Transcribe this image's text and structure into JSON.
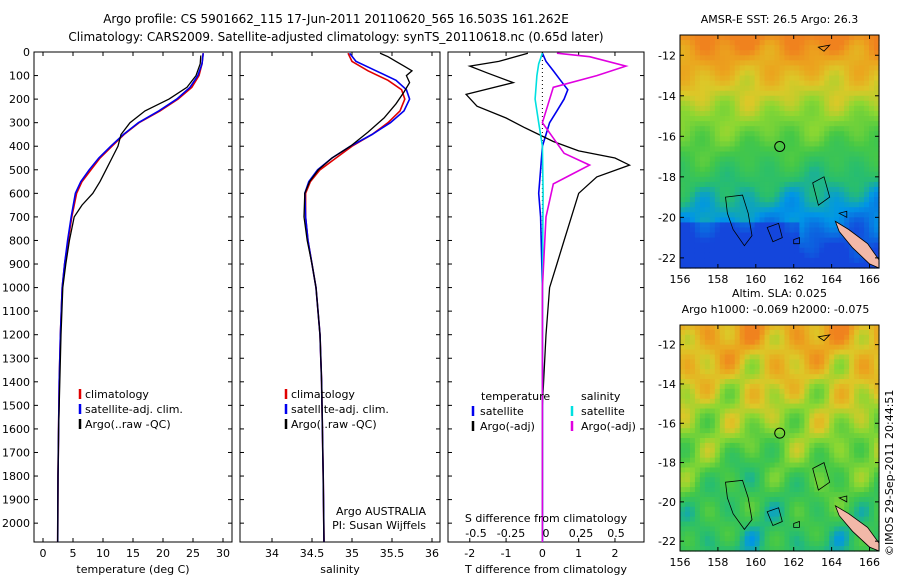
{
  "header": {
    "title1": "Argo profile: CS 5901662_115 17-Jun-2011 20110620_565 16.503S 161.262E",
    "title2": "Climatology: CARS2009. Satellite-adjusted climatology: synTS_20110618.nc (0.65d later)"
  },
  "side_label": "©IMOS 29-Sep-2011 20:44:51",
  "chart_data": [
    {
      "id": "temperature",
      "type": "line",
      "xlabel": "temperature (deg C)",
      "ylabel": "",
      "xlim": [
        -1.5,
        31.5
      ],
      "ylim": [
        0,
        2080
      ],
      "y_inverted": true,
      "xticks": [
        0,
        5,
        10,
        15,
        20,
        25,
        30
      ],
      "yticks": [
        0,
        100,
        200,
        300,
        400,
        500,
        600,
        700,
        800,
        900,
        1000,
        1100,
        1200,
        1300,
        1400,
        1500,
        1600,
        1700,
        1800,
        1900,
        2000
      ],
      "legend": [
        "climatology",
        "satellite-adj. clim.",
        "Argo(..raw -QC)"
      ],
      "legend_colors": [
        "#e00000",
        "#0000ee",
        "#000000"
      ],
      "series": [
        {
          "name": "climatology",
          "color": "#e00000",
          "x": [
            26.7,
            26.5,
            26.0,
            24.8,
            22.5,
            19.5,
            16.0,
            13.5,
            11.5,
            9.5,
            8.0,
            6.5,
            5.6,
            4.8,
            4.2,
            3.6,
            3.2,
            2.9,
            2.7,
            2.6,
            2.5,
            2.45
          ],
          "y": [
            5,
            50,
            100,
            150,
            200,
            250,
            300,
            350,
            400,
            450,
            500,
            550,
            600,
            700,
            800,
            900,
            1000,
            1200,
            1400,
            1600,
            1800,
            2080
          ]
        },
        {
          "name": "satellite-adj. clim.",
          "color": "#0000ee",
          "x": [
            26.7,
            26.5,
            25.8,
            24.5,
            22.3,
            19.3,
            15.9,
            13.4,
            11.3,
            9.3,
            7.7,
            6.3,
            5.4,
            4.7,
            4.1,
            3.6,
            3.2,
            2.9,
            2.7,
            2.6,
            2.5,
            2.45
          ],
          "y": [
            5,
            50,
            100,
            150,
            200,
            250,
            300,
            350,
            400,
            450,
            500,
            550,
            600,
            700,
            800,
            900,
            1000,
            1200,
            1400,
            1600,
            1800,
            2080
          ]
        },
        {
          "name": "Argo(..raw -QC)",
          "color": "#000000",
          "x": [
            26.3,
            26.2,
            25.5,
            24.0,
            21.0,
            17.0,
            14.5,
            13.0,
            12.5,
            11.5,
            10.5,
            9.5,
            8.3,
            6.5,
            5.2,
            4.4,
            3.8,
            3.3,
            3.0,
            2.8,
            2.6,
            2.5,
            2.45
          ],
          "y": [
            15,
            50,
            100,
            150,
            200,
            250,
            300,
            350,
            400,
            450,
            500,
            550,
            600,
            650,
            700,
            800,
            900,
            1000,
            1200,
            1400,
            1600,
            1800,
            2080
          ]
        }
      ]
    },
    {
      "id": "salinity",
      "type": "line",
      "xlabel": "salinity",
      "xlim": [
        33.6,
        36.1
      ],
      "ylim": [
        0,
        2080
      ],
      "y_inverted": true,
      "xticks": [
        34,
        34.5,
        35,
        35.5,
        36
      ],
      "xticklabels": [
        "34",
        "34.5",
        "35",
        "35.5",
        "36"
      ],
      "legend": [
        "climatology",
        "satellite-adj. clim.",
        "Argo(..raw -QC)"
      ],
      "legend_colors": [
        "#e00000",
        "#0000ee",
        "#000000"
      ],
      "annotation": [
        "Argo AUSTRALIA",
        "PI: Susan Wijffels"
      ],
      "series": [
        {
          "name": "climatology",
          "color": "#e00000",
          "x": [
            34.95,
            35.0,
            35.2,
            35.45,
            35.62,
            35.66,
            35.6,
            35.45,
            35.25,
            35.0,
            34.8,
            34.6,
            34.48,
            34.42,
            34.42,
            34.45,
            34.5,
            34.55,
            34.6,
            34.62,
            34.63,
            34.64,
            34.65
          ],
          "y": [
            5,
            40,
            80,
            120,
            160,
            200,
            250,
            300,
            350,
            400,
            450,
            500,
            550,
            600,
            700,
            800,
            900,
            1000,
            1200,
            1400,
            1600,
            1800,
            2080
          ]
        },
        {
          "name": "satellite-adj. clim.",
          "color": "#0000ee",
          "x": [
            34.97,
            35.05,
            35.3,
            35.55,
            35.68,
            35.72,
            35.65,
            35.48,
            35.25,
            34.98,
            34.75,
            34.57,
            34.46,
            34.41,
            34.42,
            34.45,
            34.5,
            34.55,
            34.6,
            34.62,
            34.63,
            34.64,
            34.65
          ],
          "y": [
            5,
            40,
            80,
            120,
            160,
            200,
            250,
            300,
            350,
            400,
            450,
            500,
            550,
            600,
            700,
            800,
            900,
            1000,
            1200,
            1400,
            1600,
            1800,
            2080
          ]
        },
        {
          "name": "Argo(..raw -QC)",
          "color": "#000000",
          "x": [
            35.35,
            35.45,
            35.55,
            35.65,
            35.75,
            35.68,
            35.72,
            35.65,
            35.55,
            35.4,
            35.2,
            34.98,
            34.75,
            34.58,
            34.47,
            34.41,
            34.4,
            34.44,
            34.5,
            34.55,
            34.6,
            34.62,
            34.63,
            34.64,
            34.65
          ],
          "y": [
            5,
            20,
            40,
            60,
            80,
            100,
            130,
            170,
            220,
            280,
            340,
            400,
            450,
            500,
            550,
            600,
            700,
            800,
            900,
            1000,
            1200,
            1400,
            1600,
            1800,
            2080
          ]
        }
      ]
    },
    {
      "id": "difference",
      "type": "line",
      "xlabel": "T difference from climatology",
      "top_label": "S difference from climatology",
      "xlim": [
        -2.6,
        2.8
      ],
      "ylim": [
        0,
        2080
      ],
      "y_inverted": true,
      "xticks": [
        -2,
        -1,
        0,
        1,
        2
      ],
      "top_ticks": [
        -0.5,
        -0.25,
        0,
        0.25,
        0.5
      ],
      "top_ticklabels": [
        "-0.5",
        "-0.25",
        "0",
        "0.25",
        "0.5"
      ],
      "legend_left_title": "temperature",
      "legend_left": [
        "satellite",
        "Argo(-adj)"
      ],
      "legend_left_colors": [
        "#0000ee",
        "#000000"
      ],
      "legend_right_title": "salinity",
      "legend_right": [
        "satellite",
        "Argo(-adj)"
      ],
      "legend_right_colors": [
        "#00e0e0",
        "#e000e0"
      ],
      "series": [
        {
          "name": "T satellite",
          "color": "#0000ee",
          "x": [
            0,
            0.1,
            0.3,
            0.5,
            0.7,
            0.6,
            0.4,
            0.2,
            0.1,
            0,
            -0.05,
            -0.1,
            -0.05,
            0,
            0
          ],
          "y": [
            5,
            40,
            80,
            120,
            160,
            200,
            250,
            300,
            350,
            400,
            500,
            600,
            700,
            1000,
            2080
          ]
        },
        {
          "name": "T Argo(-adj)",
          "color": "#000000",
          "x": [
            -0.4,
            -1.2,
            -2.0,
            -1.5,
            -0.8,
            -2.1,
            -1.8,
            -1.0,
            -0.5,
            0.3,
            1.0,
            2.0,
            2.4,
            1.5,
            1.0,
            0.8,
            0.6,
            0.4,
            0.2,
            0.1,
            0,
            0
          ],
          "y": [
            5,
            40,
            60,
            90,
            130,
            180,
            230,
            280,
            320,
            380,
            420,
            450,
            480,
            530,
            600,
            700,
            800,
            900,
            1000,
            1200,
            1500,
            2080
          ]
        },
        {
          "name": "S satellite",
          "color": "#00e0e0",
          "x": [
            0,
            -0.1,
            -0.15,
            -0.2,
            -0.1,
            0,
            0.02,
            0,
            0
          ],
          "y": [
            5,
            50,
            100,
            200,
            300,
            400,
            600,
            1000,
            2080
          ]
        },
        {
          "name": "S Argo(-adj)",
          "color": "#e000e0",
          "x": [
            0.4,
            1.3,
            2.3,
            1.5,
            0.3,
            0,
            0.6,
            1.3,
            0.8,
            0.3,
            0.1,
            0,
            0
          ],
          "y": [
            5,
            20,
            60,
            100,
            150,
            300,
            430,
            480,
            520,
            560,
            700,
            1000,
            2080
          ]
        }
      ]
    },
    {
      "id": "sst_map",
      "type": "heatmap",
      "title": "AMSR-E SST: 26.5 Argo: 26.3",
      "xlim": [
        156,
        166.5
      ],
      "ylim": [
        -22.5,
        -11
      ],
      "xticks": [
        156,
        158,
        160,
        162,
        164,
        166
      ],
      "yticks": [
        -12,
        -14,
        -16,
        -18,
        -20,
        -22
      ],
      "marker": {
        "lon": 161.262,
        "lat": -16.503
      }
    },
    {
      "id": "sla_map",
      "type": "heatmap",
      "title": "Altim. SLA: 0.025",
      "subtitle": "Argo h1000: -0.069 h2000: -0.075",
      "xlim": [
        156,
        166.5
      ],
      "ylim": [
        -22.5,
        -11
      ],
      "xticks": [
        156,
        158,
        160,
        162,
        164,
        166
      ],
      "yticks": [
        -12,
        -14,
        -16,
        -18,
        -20,
        -22
      ],
      "marker": {
        "lon": 161.262,
        "lat": -16.503
      }
    }
  ]
}
